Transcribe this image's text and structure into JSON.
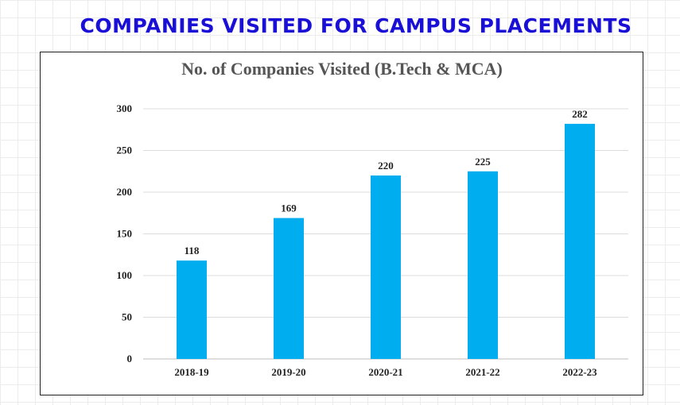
{
  "page": {
    "title": "COMPANIES VISITED FOR CAMPUS PLACEMENTS"
  },
  "chart_data": {
    "type": "bar",
    "title": "No. of Companies Visited (B.Tech & MCA)",
    "categories": [
      "2018-19",
      "2019-20",
      "2020-21",
      "2021-22",
      "2022-23"
    ],
    "values": [
      118,
      169,
      220,
      225,
      282
    ],
    "ylim": [
      0,
      300
    ],
    "yticks": [
      0,
      50,
      100,
      150,
      200,
      250,
      300
    ],
    "grid": true,
    "legend": "none",
    "bar_color": "#00adef"
  }
}
